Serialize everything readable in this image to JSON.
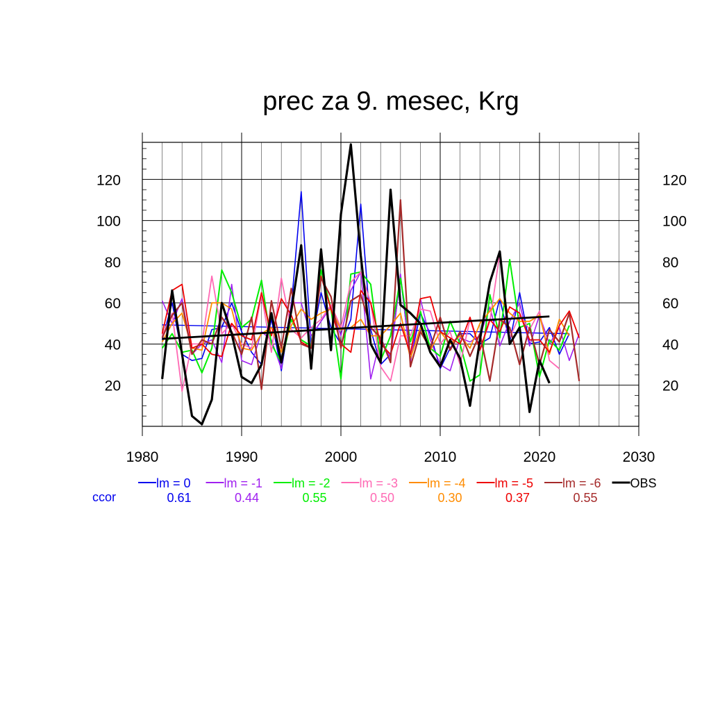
{
  "chart_data": {
    "type": "line",
    "title": "prec za 9. mesec, Krg",
    "xlim": [
      1980,
      2030
    ],
    "ylim": [
      0,
      138
    ],
    "x_ticks": [
      1980,
      1990,
      2000,
      2010,
      2020,
      2030
    ],
    "y_ticks": [
      20,
      40,
      60,
      80,
      100,
      120
    ],
    "grid": true,
    "legend_position": "bottom",
    "ccor_label": "ccor",
    "series": [
      {
        "name": "lm = 0",
        "color": "#0000ee",
        "width": 1.6,
        "start": 1982,
        "ccor": "0.61",
        "values": [
          42,
          60,
          35,
          32,
          33,
          47,
          48,
          60,
          46,
          36,
          30,
          52,
          27,
          58,
          114,
          40,
          65,
          48,
          40,
          52,
          108,
          47,
          30,
          35,
          73,
          32,
          55,
          45,
          28,
          38,
          45,
          45,
          40,
          43,
          62,
          41,
          65,
          40,
          41,
          48,
          35,
          45
        ],
        "trend": [
          49.3,
          45.0
        ]
      },
      {
        "name": "lm = -1",
        "color": "#a020f0",
        "width": 1.6,
        "start": 1982,
        "ccor": "0.44",
        "values": [
          61,
          50,
          62,
          35,
          40,
          42,
          31,
          69,
          32,
          30,
          46,
          42,
          28,
          60,
          60,
          44,
          51,
          58,
          44,
          66,
          75,
          23,
          43,
          33,
          74,
          31,
          62,
          42,
          30,
          27,
          43,
          41,
          44,
          58,
          39,
          51,
          60,
          39,
          54,
          40,
          48,
          32,
          45
        ]
      },
      {
        "name": "lm = -2",
        "color": "#00ee00",
        "width": 2.0,
        "start": 1982,
        "ccor": "0.55",
        "values": [
          38,
          45,
          36,
          37,
          26,
          38,
          76,
          65,
          48,
          52,
          71,
          40,
          31,
          52,
          42,
          39,
          76,
          57,
          23,
          74,
          75,
          69,
          32,
          44,
          72,
          41,
          56,
          38,
          34,
          51,
          40,
          22,
          25,
          64,
          43,
          81,
          48,
          50,
          24,
          42,
          37,
          49
        ]
      },
      {
        "name": "lm = -3",
        "color": "#ff69b4",
        "width": 1.8,
        "start": 1982,
        "ccor": "0.50",
        "values": [
          44,
          55,
          17,
          40,
          40,
          73,
          45,
          50,
          40,
          38,
          64,
          36,
          72,
          47,
          43,
          48,
          52,
          59,
          48,
          70,
          75,
          60,
          29,
          22,
          44,
          44,
          57,
          56,
          40,
          46,
          30,
          52,
          37,
          51,
          84,
          43,
          54,
          47,
          56,
          32,
          28
        ]
      },
      {
        "name": "lm = -4",
        "color": "#ff8c00",
        "width": 1.8,
        "start": 1982,
        "ccor": "0.30",
        "values": [
          41,
          50,
          55,
          38,
          37,
          60,
          60,
          57,
          38,
          37,
          45,
          48,
          36,
          49,
          57,
          52,
          55,
          57,
          47,
          48,
          52,
          44,
          44,
          49,
          55,
          33,
          48,
          37,
          46,
          40,
          44,
          38,
          50,
          56,
          62,
          55,
          51,
          51,
          54,
          35,
          52,
          44
        ]
      },
      {
        "name": "lm = -5",
        "color": "#ee0000",
        "width": 1.8,
        "start": 1982,
        "ccor": "0.37",
        "values": [
          45,
          66,
          69,
          38,
          40,
          35,
          34,
          50,
          44,
          42,
          65,
          44,
          62,
          54,
          41,
          38,
          73,
          57,
          40,
          36,
          66,
          60,
          40,
          35,
          50,
          35,
          62,
          63,
          46,
          43,
          40,
          53,
          37,
          52,
          46,
          58,
          55,
          42,
          42,
          36,
          49,
          56,
          43
        ]
      },
      {
        "name": "lm = -6",
        "color": "#a52a2a",
        "width": 2.2,
        "start": 1982,
        "ccor": "0.55",
        "values": [
          43,
          54,
          60,
          35,
          42,
          40,
          53,
          46,
          35,
          53,
          18,
          61,
          38,
          67,
          40,
          38,
          72,
          63,
          38,
          61,
          64,
          48,
          43,
          31,
          110,
          29,
          46,
          38,
          53,
          37,
          46,
          34,
          45,
          22,
          52,
          48,
          30,
          48,
          30,
          47,
          41,
          55,
          22
        ]
      },
      {
        "name": "OBS",
        "color": "#000000",
        "width": 3.2,
        "start": 1982,
        "ccor": "",
        "values": [
          23,
          66,
          35,
          5,
          1,
          13,
          60,
          45,
          24,
          21,
          30,
          55,
          31,
          56,
          88,
          28,
          86,
          37,
          103,
          137,
          83,
          40,
          31,
          115,
          59,
          55,
          50,
          36,
          29,
          42,
          33,
          10,
          42,
          70,
          85,
          40,
          48,
          7,
          32,
          21
        ],
        "trend": [
          42.5,
          53.4
        ]
      }
    ]
  }
}
